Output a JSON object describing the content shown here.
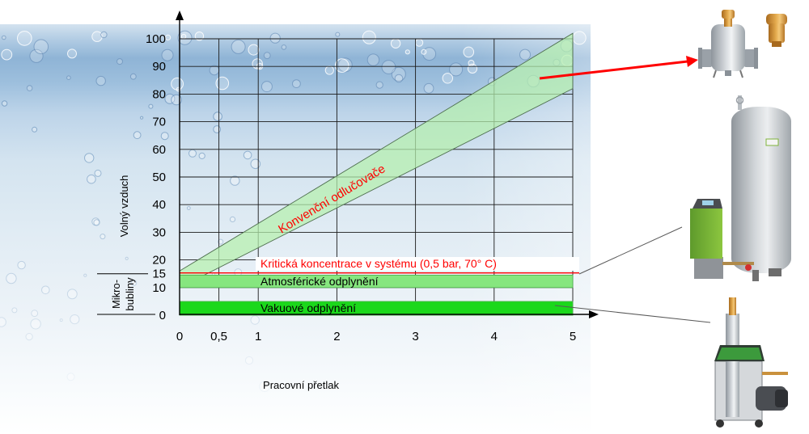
{
  "chart_data": {
    "type": "area",
    "xlabel": "Pracovní přetlak",
    "ylabel": "Volný vzduch",
    "xlim": [
      0,
      5
    ],
    "ylim": [
      0,
      100
    ],
    "grid": true,
    "x_ticks": [
      {
        "value": 0,
        "label": "0"
      },
      {
        "value": 0.5,
        "label": "0,5"
      },
      {
        "value": 1,
        "label": "1"
      },
      {
        "value": 2,
        "label": "2"
      },
      {
        "value": 3,
        "label": "3"
      },
      {
        "value": 4,
        "label": "4"
      },
      {
        "value": 5,
        "label": "5"
      }
    ],
    "y_ticks": [
      {
        "value": 100,
        "label": "100"
      },
      {
        "value": 90,
        "label": "90"
      },
      {
        "value": 80,
        "label": "80"
      },
      {
        "value": 70,
        "label": "70"
      },
      {
        "value": 60,
        "label": "60"
      },
      {
        "value": 50,
        "label": "50"
      },
      {
        "value": 40,
        "label": "40"
      },
      {
        "value": 30,
        "label": "30"
      },
      {
        "value": 20,
        "label": "20"
      },
      {
        "value": 15,
        "label": "15"
      },
      {
        "value": 10,
        "label": "10"
      },
      {
        "value": 0,
        "label": "0"
      }
    ],
    "bands": [
      {
        "name": "Konvenční odlučovače",
        "x": [
          0,
          5
        ],
        "lower": [
          10,
          82
        ],
        "upper": [
          16,
          102
        ],
        "color": "#b6f0ad",
        "text_color": "#ff0000"
      },
      {
        "name": "Atmosférické odplynění",
        "x": [
          0,
          5
        ],
        "lower": [
          10,
          10
        ],
        "upper": [
          14.5,
          14.5
        ],
        "color": "#86e67f",
        "text_color": "#000000"
      },
      {
        "name": "Vakuové odplynění",
        "x": [
          0,
          5
        ],
        "lower": [
          0,
          0
        ],
        "upper": [
          5,
          5
        ],
        "color": "#1bd81b",
        "text_color": "#000000"
      }
    ],
    "reference_line": {
      "label": "Kritická koncentrace v systému (0,5 bar, 70° C)",
      "y": 15,
      "color": "#ff0000"
    },
    "bracket": {
      "labels": [
        "Mikro-",
        "bubliny"
      ],
      "y_range": [
        0,
        15
      ]
    }
  },
  "colors": {
    "arrow": "#ff0000",
    "connector": "#595959",
    "axis": "#000000",
    "grid": "#1a1a1a"
  },
  "illustrations": {
    "separator": "separator-icon",
    "air_vent": "air-vent-icon",
    "expansion_vessel": "expansion-vessel-icon",
    "atmospheric_unit": "atmospheric-degassing-unit-icon",
    "vacuum_unit": "vacuum-degassing-unit-icon"
  }
}
